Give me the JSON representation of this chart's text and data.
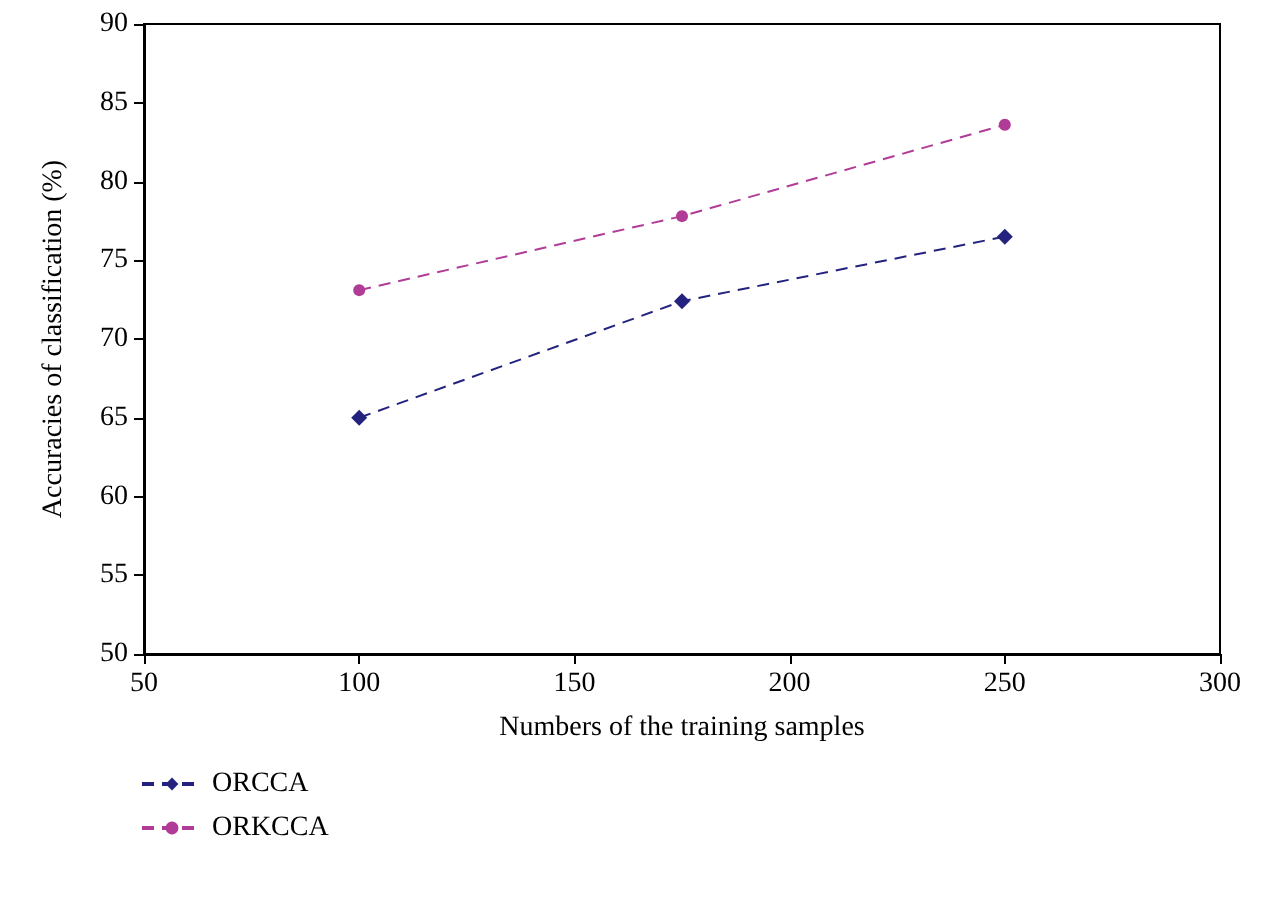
{
  "chart_data": {
    "type": "line",
    "xlabel": "Numbers of the training samples",
    "ylabel": "Accuracies of classification (%)",
    "x": [
      100,
      175,
      250
    ],
    "series": [
      {
        "name": "ORCCA",
        "color": "#23237f",
        "values": [
          65.0,
          72.4,
          76.5
        ],
        "marker": "diamond",
        "line_style": "dashed"
      },
      {
        "name": "ORKCCA",
        "color": "#b03c97",
        "values": [
          73.1,
          77.8,
          83.6
        ],
        "marker": "circle",
        "line_style": "dashed"
      }
    ],
    "xlim": [
      50,
      300
    ],
    "xticks": [
      50,
      100,
      150,
      200,
      250,
      300
    ],
    "ylim": [
      50,
      90
    ],
    "yticks": [
      50,
      55,
      60,
      65,
      70,
      75,
      80,
      85,
      90
    ],
    "grid": false,
    "legend": "bottom left"
  }
}
